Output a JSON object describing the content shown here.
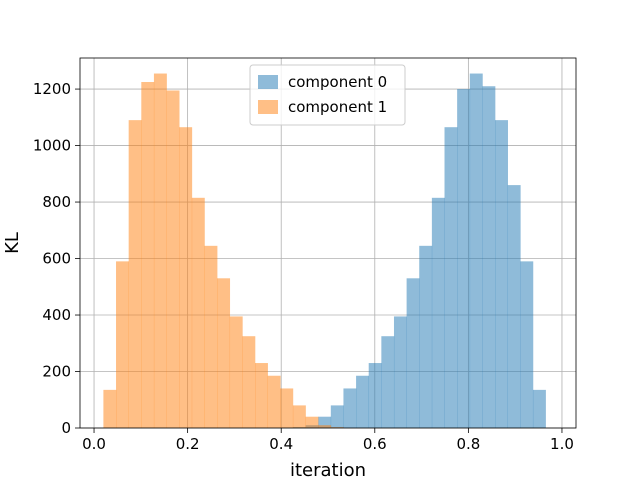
{
  "chart_data": {
    "type": "histogram",
    "title": "",
    "xlabel": "iteration",
    "ylabel": "KL",
    "xlim": [
      -0.03,
      1.03
    ],
    "ylim": [
      0,
      1310
    ],
    "xticks": [
      "0.0",
      "0.2",
      "0.4",
      "0.6",
      "0.8",
      "1.0"
    ],
    "yticks": [
      "0",
      "200",
      "400",
      "600",
      "800",
      "1000",
      "1200"
    ],
    "grid": true,
    "legend_position": "top-center",
    "bin_edges": [
      0.02,
      0.047,
      0.074,
      0.101,
      0.128,
      0.155,
      0.182,
      0.209,
      0.236,
      0.263,
      0.29,
      0.317,
      0.344,
      0.371,
      0.398,
      0.425,
      0.452,
      0.479,
      0.506,
      0.533,
      0.56,
      0.587,
      0.614,
      0.641,
      0.668,
      0.695,
      0.722,
      0.749,
      0.776,
      0.803,
      0.83,
      0.857,
      0.884,
      0.911,
      0.938,
      0.965,
      0.992
    ],
    "series": [
      {
        "name": "component 0",
        "color": "#1f77b4",
        "alpha": 0.5,
        "values": [
          0,
          0,
          0,
          0,
          0,
          0,
          0,
          0,
          0,
          0,
          0,
          0,
          0,
          0,
          0,
          3,
          10,
          40,
          80,
          140,
          185,
          230,
          325,
          395,
          530,
          645,
          815,
          1065,
          1200,
          1255,
          1210,
          1090,
          860,
          590,
          135,
          0
        ]
      },
      {
        "name": "component 1",
        "color": "#ff7f0e",
        "alpha": 0.5,
        "values": [
          135,
          590,
          1090,
          1225,
          1255,
          1195,
          1065,
          815,
          645,
          530,
          395,
          325,
          230,
          185,
          140,
          80,
          40,
          10,
          3,
          0,
          0,
          0,
          0,
          0,
          0,
          0,
          0,
          0,
          0,
          0,
          0,
          0,
          0,
          0,
          0,
          0
        ]
      }
    ]
  }
}
